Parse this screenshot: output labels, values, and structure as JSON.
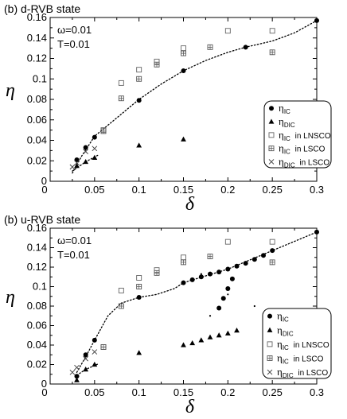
{
  "chart_data": [
    {
      "type": "scatter",
      "title": "(b) d-RVB state",
      "params": [
        "ω=0.01",
        "T=0.01"
      ],
      "xlabel": "δ",
      "ylabel": "η",
      "xlim": [
        0,
        0.3
      ],
      "ylim": [
        0,
        0.16
      ],
      "xticks": [
        "0",
        "0.05",
        "0.1",
        "0.15",
        "0.2",
        "0.25",
        "0.3"
      ],
      "yticks": [
        "0",
        "0.02",
        "0.04",
        "0.06",
        "0.08",
        "0.1",
        "0.12",
        "0.14",
        "0.16"
      ],
      "legend_position": "lower-right",
      "legend": [
        {
          "marker": "filled-circle",
          "name": "η",
          "sub": "IC",
          "suffix": ""
        },
        {
          "marker": "filled-triangle",
          "name": "η",
          "sub": "DIC",
          "suffix": ""
        },
        {
          "marker": "open-square",
          "name": "η",
          "sub": "IC",
          "suffix": "in LNSCO"
        },
        {
          "marker": "boxed-plus",
          "name": "η",
          "sub": "IC",
          "suffix": "in LSCO"
        },
        {
          "marker": "cross",
          "name": "η",
          "sub": "DIC",
          "suffix": "in LSCO"
        }
      ],
      "series": [
        {
          "marker": "filled-circle",
          "points": [
            [
              0.03,
              0.021
            ],
            [
              0.04,
              0.033
            ],
            [
              0.05,
              0.043
            ],
            [
              0.1,
              0.079
            ],
            [
              0.15,
              0.108
            ],
            [
              0.22,
              0.131
            ],
            [
              0.3,
              0.157
            ]
          ]
        },
        {
          "marker": "filled-triangle",
          "points": [
            [
              0.03,
              0.015
            ],
            [
              0.04,
              0.019
            ],
            [
              0.05,
              0.023
            ],
            [
              0.1,
              0.035
            ],
            [
              0.15,
              0.041
            ]
          ]
        },
        {
          "marker": "open-square",
          "points": [
            [
              0.06,
              0.05
            ],
            [
              0.08,
              0.096
            ],
            [
              0.1,
              0.109
            ],
            [
              0.12,
              0.117
            ],
            [
              0.15,
              0.13
            ],
            [
              0.2,
              0.147
            ],
            [
              0.25,
              0.147
            ]
          ]
        },
        {
          "marker": "boxed-plus",
          "points": [
            [
              0.06,
              0.049
            ],
            [
              0.08,
              0.081
            ],
            [
              0.1,
              0.1
            ],
            [
              0.12,
              0.114
            ],
            [
              0.15,
              0.125
            ],
            [
              0.18,
              0.131
            ],
            [
              0.25,
              0.126
            ]
          ]
        },
        {
          "marker": "cross",
          "points": [
            [
              0.025,
              0.014
            ],
            [
              0.03,
              0.018
            ],
            [
              0.04,
              0.029
            ],
            [
              0.05,
              0.032
            ]
          ]
        }
      ],
      "curves": [
        {
          "style": "dotted",
          "points": [
            [
              0.025,
              0.008
            ],
            [
              0.035,
              0.024
            ],
            [
              0.05,
              0.044
            ],
            [
              0.075,
              0.062
            ],
            [
              0.1,
              0.08
            ],
            [
              0.125,
              0.095
            ],
            [
              0.15,
              0.108
            ],
            [
              0.175,
              0.118
            ],
            [
              0.2,
              0.126
            ],
            [
              0.22,
              0.131
            ],
            [
              0.25,
              0.137
            ],
            [
              0.275,
              0.145
            ],
            [
              0.3,
              0.157
            ]
          ]
        },
        {
          "style": "dotted",
          "points": [
            [
              0.025,
              0.01
            ],
            [
              0.04,
              0.019
            ],
            [
              0.055,
              0.026
            ]
          ]
        }
      ]
    },
    {
      "type": "scatter",
      "title": "(b) u-RVB state",
      "params": [
        "ω=0.01",
        "T=0.01"
      ],
      "xlabel": "δ",
      "ylabel": "η",
      "xlim": [
        0,
        0.3
      ],
      "ylim": [
        0,
        0.16
      ],
      "xticks": [
        "0",
        "0.05",
        "0.1",
        "0.15",
        "0.2",
        "0.25",
        "0.3"
      ],
      "yticks": [
        "0",
        "0.02",
        "0.04",
        "0.06",
        "0.08",
        "0.1",
        "0.12",
        "0.14",
        "0.16"
      ],
      "legend_position": "lower-right",
      "legend": [
        {
          "marker": "filled-circle",
          "name": "η",
          "sub": "IC",
          "suffix": ""
        },
        {
          "marker": "filled-triangle",
          "name": "η",
          "sub": "DIC",
          "suffix": ""
        },
        {
          "marker": "open-square",
          "name": "η",
          "sub": "IC",
          "suffix": "in LNSCO"
        },
        {
          "marker": "boxed-plus",
          "name": "η",
          "sub": "IC",
          "suffix": "in LSCO"
        },
        {
          "marker": "cross",
          "name": "η",
          "sub": "DIC",
          "suffix": "in LSCO"
        }
      ],
      "series": [
        {
          "marker": "filled-circle",
          "points": [
            [
              0.03,
              0.008
            ],
            [
              0.04,
              0.03
            ],
            [
              0.05,
              0.045
            ],
            [
              0.1,
              0.089
            ],
            [
              0.15,
              0.104
            ],
            [
              0.16,
              0.107
            ],
            [
              0.17,
              0.11
            ],
            [
              0.18,
              0.113
            ],
            [
              0.19,
              0.115
            ],
            [
              0.2,
              0.118
            ],
            [
              0.21,
              0.121
            ],
            [
              0.22,
              0.124
            ],
            [
              0.23,
              0.128
            ],
            [
              0.24,
              0.132
            ],
            [
              0.25,
              0.137
            ],
            [
              0.19,
              0.078
            ],
            [
              0.195,
              0.088
            ],
            [
              0.2,
              0.098
            ],
            [
              0.205,
              0.108
            ],
            [
              0.3,
              0.156
            ]
          ]
        },
        {
          "marker": "filled-triangle",
          "points": [
            [
              0.03,
              0.004
            ],
            [
              0.04,
              0.015
            ],
            [
              0.05,
              0.02
            ],
            [
              0.1,
              0.032
            ],
            [
              0.15,
              0.04
            ],
            [
              0.16,
              0.042
            ],
            [
              0.17,
              0.045
            ],
            [
              0.18,
              0.048
            ],
            [
              0.19,
              0.05
            ],
            [
              0.2,
              0.052
            ],
            [
              0.21,
              0.055
            ]
          ]
        },
        {
          "marker": "open-square",
          "points": [
            [
              0.06,
              0.038
            ],
            [
              0.08,
              0.096
            ],
            [
              0.1,
              0.109
            ],
            [
              0.12,
              0.117
            ],
            [
              0.15,
              0.13
            ],
            [
              0.2,
              0.146
            ],
            [
              0.25,
              0.146
            ]
          ]
        },
        {
          "marker": "boxed-plus",
          "points": [
            [
              0.06,
              0.038
            ],
            [
              0.08,
              0.08
            ],
            [
              0.1,
              0.1
            ],
            [
              0.12,
              0.114
            ],
            [
              0.15,
              0.125
            ],
            [
              0.18,
              0.131
            ],
            [
              0.25,
              0.125
            ]
          ]
        },
        {
          "marker": "cross",
          "points": [
            [
              0.025,
              0.012
            ],
            [
              0.03,
              0.017
            ],
            [
              0.04,
              0.026
            ],
            [
              0.05,
              0.033
            ]
          ]
        }
      ],
      "curves": [
        {
          "style": "dotted",
          "points": [
            [
              0.03,
              0.012
            ],
            [
              0.04,
              0.028
            ],
            [
              0.05,
              0.045
            ],
            [
              0.065,
              0.07
            ],
            [
              0.08,
              0.083
            ],
            [
              0.1,
              0.089
            ],
            [
              0.12,
              0.092
            ],
            [
              0.14,
              0.098
            ],
            [
              0.15,
              0.104
            ],
            [
              0.2,
              0.118
            ],
            [
              0.25,
              0.137
            ],
            [
              0.3,
              0.156
            ]
          ]
        },
        {
          "style": "dotted",
          "points": [
            [
              0.03,
              0.009
            ],
            [
              0.04,
              0.015
            ],
            [
              0.055,
              0.021
            ]
          ]
        }
      ],
      "stray_dots": [
        [
          0.17,
          0.113
        ],
        [
          0.18,
          0.07
        ],
        [
          0.2,
          0.092
        ],
        [
          0.23,
          0.08
        ]
      ]
    }
  ]
}
